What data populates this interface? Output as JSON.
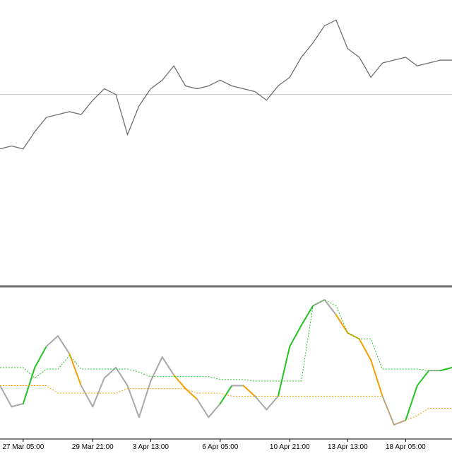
{
  "chart_data": [
    {
      "type": "line",
      "ylim": [
        0,
        100
      ],
      "level": 67,
      "level_color": "#c8c8c8",
      "series": [
        {
          "color": "#707070",
          "values": [
            48,
            49,
            48,
            54,
            59,
            60,
            61,
            60,
            65,
            69,
            67,
            53,
            63,
            69,
            72,
            77,
            70,
            69,
            70,
            72,
            70,
            69,
            68,
            65,
            70,
            73,
            80,
            85,
            91,
            93,
            83,
            80,
            73,
            78,
            79,
            80,
            77,
            78,
            79,
            79
          ]
        }
      ]
    },
    {
      "type": "oscillator",
      "ylim": [
        0,
        100
      ],
      "categories": [
        null,
        null,
        "27 Mar 05:00",
        null,
        null,
        null,
        null,
        null,
        "29 Mar 21:00",
        null,
        null,
        null,
        null,
        "3 Apr 13:00",
        null,
        null,
        null,
        null,
        null,
        "6 Apr 05:00",
        null,
        null,
        null,
        null,
        null,
        "10 Apr 21:00",
        null,
        null,
        null,
        null,
        "13 Apr 13:00",
        null,
        null,
        null,
        null,
        "18 Apr 05:00",
        null,
        null,
        null,
        null
      ],
      "up_color": "#22c322",
      "down_color": "#f5a000",
      "series": [
        {
          "color": "#a8a8a8",
          "values": [
            35,
            21,
            23,
            47,
            61,
            68,
            56,
            35,
            21,
            40,
            47,
            35,
            14,
            38,
            54,
            42,
            33,
            26,
            14,
            23,
            35,
            35,
            28,
            19,
            28,
            61,
            75,
            88,
            92,
            82,
            70,
            66,
            52,
            28,
            9,
            12,
            35,
            45,
            45,
            47
          ]
        },
        {
          "color": "#22c322",
          "dash": true,
          "values": [
            47,
            47,
            47,
            40,
            46,
            46,
            55,
            46,
            46,
            46,
            46,
            46,
            44,
            41,
            41,
            41,
            41,
            41,
            41,
            39,
            39,
            39,
            38,
            38,
            38,
            38,
            38,
            88,
            92,
            88,
            70,
            66,
            66,
            46,
            46,
            46,
            46,
            45,
            45,
            47
          ]
        },
        {
          "color": "#f5a000",
          "dash": true,
          "values": [
            35,
            35,
            35,
            35,
            35,
            30,
            30,
            30,
            30,
            30,
            30,
            33,
            33,
            33,
            33,
            33,
            33,
            30,
            30,
            30,
            28,
            28,
            28,
            28,
            28,
            28,
            28,
            28,
            28,
            28,
            28,
            28,
            28,
            28,
            9,
            12,
            15,
            20,
            20,
            20
          ]
        }
      ]
    }
  ]
}
